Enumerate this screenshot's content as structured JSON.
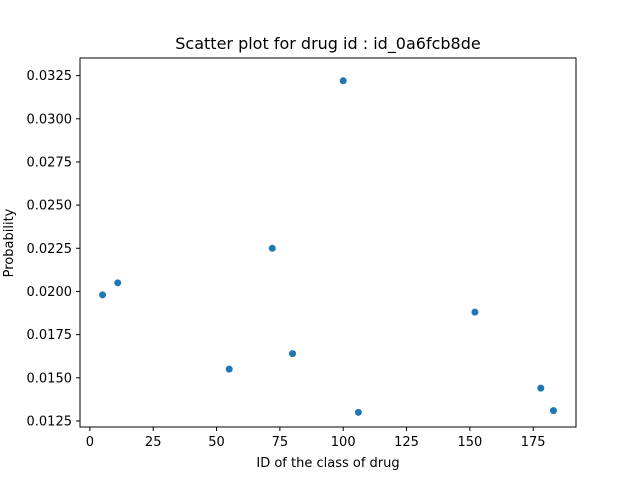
{
  "chart_data": {
    "type": "scatter",
    "title": "Scatter plot for drug id : id_0a6fcb8de",
    "xlabel": "ID of the class of drug",
    "ylabel": "Probability",
    "xlim": [
      -3.9,
      191.9
    ],
    "ylim": [
      0.01215,
      0.03352
    ],
    "xticks": [
      0,
      25,
      50,
      75,
      100,
      125,
      150,
      175
    ],
    "xtick_labels": [
      "0",
      "25",
      "50",
      "75",
      "100",
      "125",
      "150",
      "175"
    ],
    "yticks": [
      0.0125,
      0.015,
      0.0175,
      0.02,
      0.0225,
      0.025,
      0.0275,
      0.03,
      0.0325
    ],
    "ytick_labels": [
      "0.0125",
      "0.0150",
      "0.0175",
      "0.0200",
      "0.0225",
      "0.0250",
      "0.0275",
      "0.0300",
      "0.0325"
    ],
    "grid": false,
    "marker_color": "#1f77b4",
    "points": [
      {
        "x": 5,
        "y": 0.0198
      },
      {
        "x": 11,
        "y": 0.0205
      },
      {
        "x": 55,
        "y": 0.0155
      },
      {
        "x": 72,
        "y": 0.0225
      },
      {
        "x": 80,
        "y": 0.0164
      },
      {
        "x": 100,
        "y": 0.0322
      },
      {
        "x": 106,
        "y": 0.013
      },
      {
        "x": 152,
        "y": 0.0188
      },
      {
        "x": 178,
        "y": 0.0144
      },
      {
        "x": 183,
        "y": 0.0131
      }
    ]
  }
}
